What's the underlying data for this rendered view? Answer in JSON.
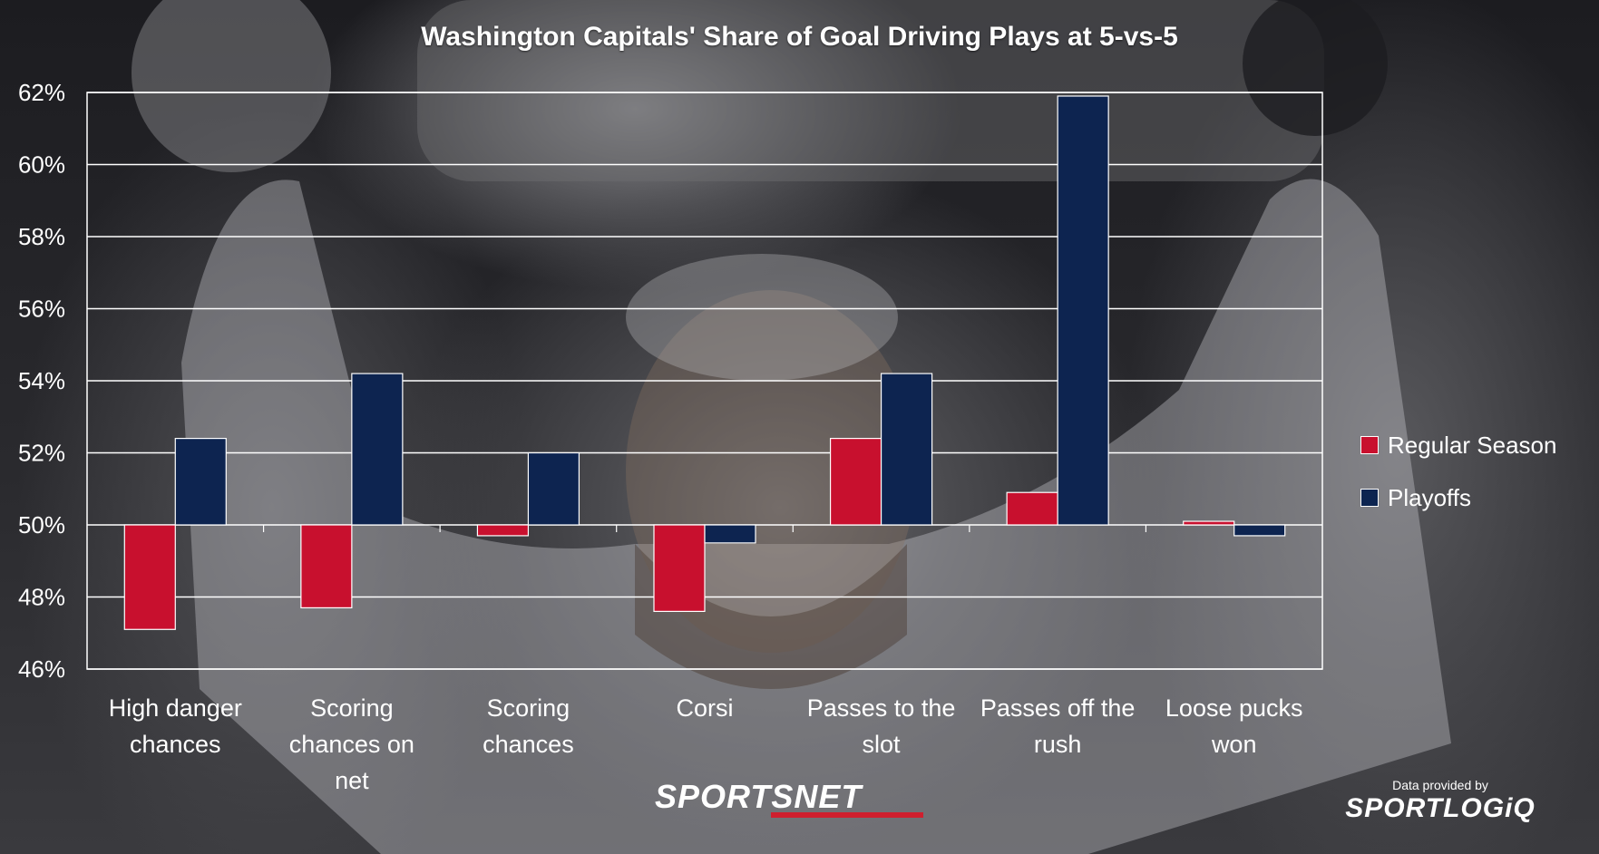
{
  "chart_data": {
    "type": "bar",
    "title": "Washington Capitals' Share of Goal Driving Plays at 5-vs-5",
    "categories": [
      [
        "High danger",
        "chances"
      ],
      [
        "Scoring",
        "chances on",
        "net"
      ],
      [
        "Scoring",
        "chances"
      ],
      [
        "Corsi"
      ],
      [
        "Passes to the",
        "slot"
      ],
      [
        "Passes off the",
        "rush"
      ],
      [
        "Loose pucks",
        "won"
      ]
    ],
    "baseline": 50,
    "ylim": [
      46,
      62
    ],
    "yticks": [
      46,
      48,
      50,
      52,
      54,
      56,
      58,
      60,
      62
    ],
    "ytick_suffix": "%",
    "grid": true,
    "legend_position": "right",
    "series": [
      {
        "name": "Regular Season",
        "color": "#c8102e",
        "values": [
          47.1,
          47.7,
          49.7,
          47.6,
          52.4,
          50.9,
          50.1
        ]
      },
      {
        "name": "Playoffs",
        "color": "#0d2450",
        "values": [
          52.4,
          54.2,
          52.0,
          49.5,
          54.2,
          61.9,
          49.7
        ]
      }
    ]
  },
  "branding": {
    "network": "SPORTSNET",
    "credit_label": "Data provided by",
    "credit_logo": "SPORTLOGiQ"
  }
}
